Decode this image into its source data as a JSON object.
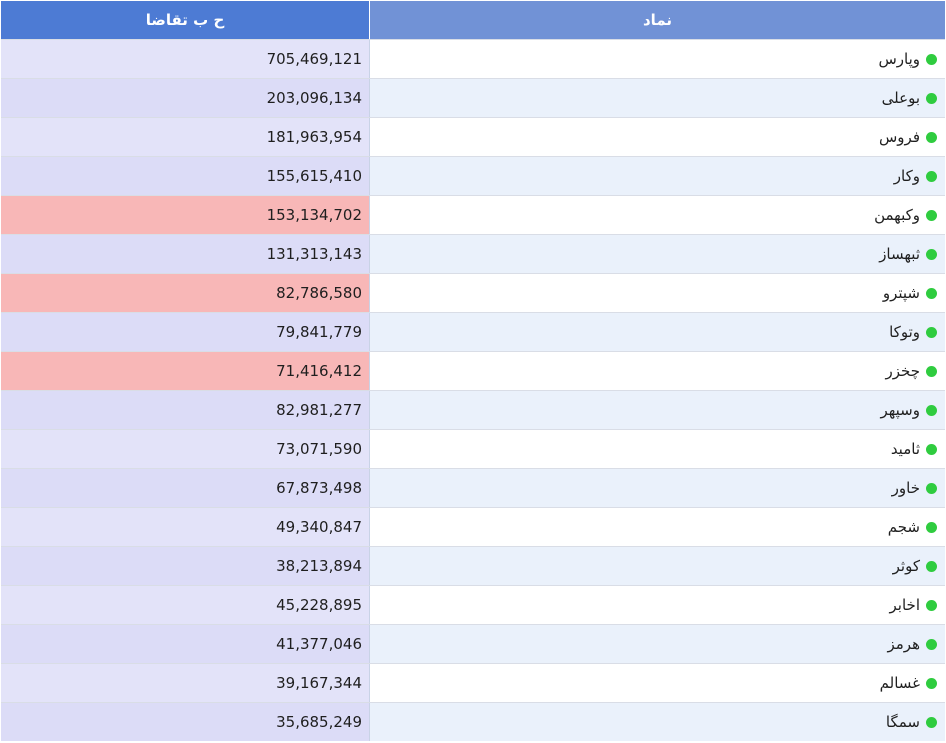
{
  "table": {
    "headers": {
      "symbol": "نماد",
      "value": "ح ب تقاضا"
    },
    "colors": {
      "header_symbol_bg": "#7192d6",
      "header_value_bg": "#4d7bd4",
      "status_dot": "#2fcc3f",
      "value_bg": "#dcdcf7",
      "value_alert_bg": "#f8b7b7"
    },
    "rows": [
      {
        "symbol": "وپارس",
        "value": "705,469,121",
        "status": "normal"
      },
      {
        "symbol": "بوعلی",
        "value": "203,096,134",
        "status": "normal"
      },
      {
        "symbol": "فروس",
        "value": "181,963,954",
        "status": "normal"
      },
      {
        "symbol": "وکار",
        "value": "155,615,410",
        "status": "normal"
      },
      {
        "symbol": "وکبهمن",
        "value": "153,134,702",
        "status": "alert"
      },
      {
        "symbol": "ثبهساز",
        "value": "131,313,143",
        "status": "normal"
      },
      {
        "symbol": "شپترو",
        "value": "82,786,580",
        "status": "alert"
      },
      {
        "symbol": "وتوکا",
        "value": "79,841,779",
        "status": "normal"
      },
      {
        "symbol": "چخزر",
        "value": "71,416,412",
        "status": "alert"
      },
      {
        "symbol": "وسپهر",
        "value": "82,981,277",
        "status": "normal"
      },
      {
        "symbol": "ثامید",
        "value": "73,071,590",
        "status": "normal"
      },
      {
        "symbol": "خاور",
        "value": "67,873,498",
        "status": "normal"
      },
      {
        "symbol": "شجم",
        "value": "49,340,847",
        "status": "normal"
      },
      {
        "symbol": "کوثر",
        "value": "38,213,894",
        "status": "normal"
      },
      {
        "symbol": "اخابر",
        "value": "45,228,895",
        "status": "normal"
      },
      {
        "symbol": "هرمز",
        "value": "41,377,046",
        "status": "normal"
      },
      {
        "symbol": "غسالم",
        "value": "39,167,344",
        "status": "normal"
      },
      {
        "symbol": "سمگا",
        "value": "35,685,249",
        "status": "normal"
      }
    ]
  }
}
